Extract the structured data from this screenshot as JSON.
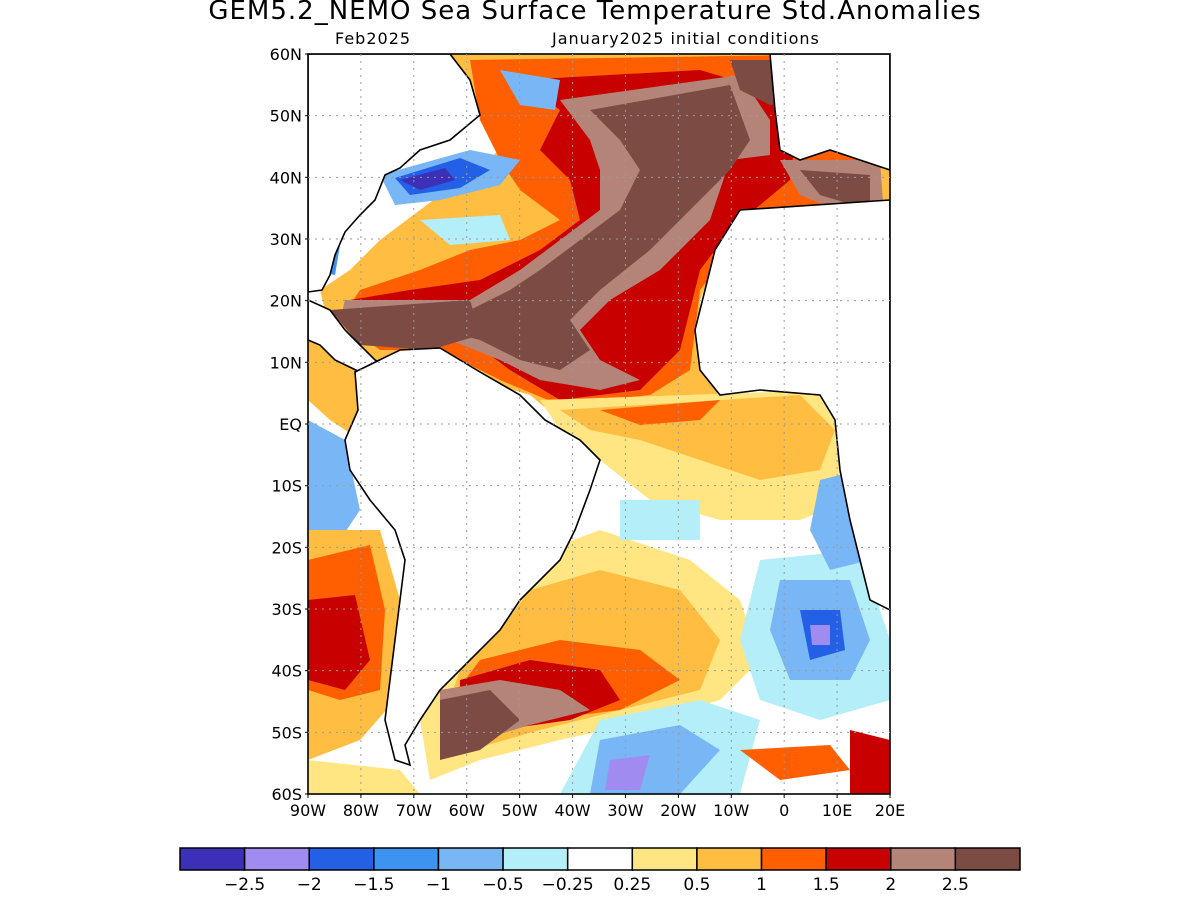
{
  "title": "GEM5.2_NEMO Sea Surface Temperature Std.Anomalies",
  "valid_month": "Feb2025",
  "init_conditions": "January2025 initial conditions",
  "map": {
    "lat_range": [
      -60,
      60
    ],
    "lon_range": [
      -90,
      20
    ],
    "lat_labels": [
      "60N",
      "50N",
      "40N",
      "30N",
      "20N",
      "10N",
      "EQ",
      "10S",
      "20S",
      "30S",
      "40S",
      "50S",
      "60S"
    ],
    "lon_labels": [
      "90W",
      "80W",
      "70W",
      "60W",
      "50W",
      "40W",
      "30W",
      "20W",
      "10W",
      "0",
      "10E",
      "20E"
    ],
    "grid": true
  },
  "colorbar": {
    "colors": [
      "#3c2fb8",
      "#a08cf0",
      "#2360e6",
      "#3c93f0",
      "#78b6f5",
      "#b4eef8",
      "#ffffff",
      "#ffe683",
      "#ffbe41",
      "#ff5f00",
      "#c80000",
      "#b48478",
      "#7c4c44"
    ],
    "labels": [
      "−2.5",
      "−2",
      "−1.5",
      "−1",
      "−0.5",
      "−0.25",
      "0.25",
      "0.5",
      "1",
      "1.5",
      "2",
      "2.5"
    ]
  },
  "palette": {
    "land": "#ffffff",
    "ocean_neutral": "#ffffff",
    "brown_dark": "#7c4c44",
    "brown_light": "#b48478",
    "red": "#c80000",
    "orange": "#ff5f00",
    "light_orange": "#ffbe41",
    "yellow": "#ffe683",
    "cyan": "#b4eef8",
    "light_blue": "#78b6f5",
    "blue": "#3c93f0",
    "deep_blue": "#2360e6",
    "lavender": "#a08cf0",
    "purple": "#3c2fb8"
  }
}
